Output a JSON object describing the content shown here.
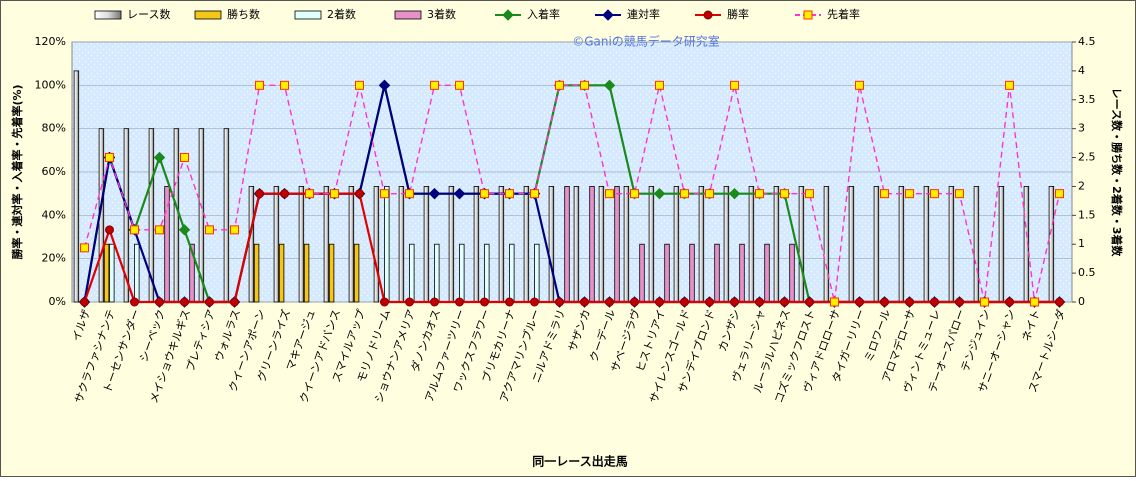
{
  "chart_data": {
    "type": "bar_line",
    "watermark": "©Ganiの競馬データ研究室",
    "x_label": "同一レース出走馬",
    "y_label": "勝率・連対率・入着率・先着率(%)",
    "y2_label": "レース数・勝ち数・2着数・3着数",
    "categories": [
      "イルザ",
      "サクラファシナンテ",
      "トーセンサンダー",
      "シーベック",
      "メイショウキルギス",
      "プレティシア",
      "ウォルラス",
      "クイーンアポーン",
      "グリーンライズ",
      "マキアージュ",
      "クイーンアドバンス",
      "スマイルアップ",
      "モリノドリーム",
      "ショウナンアメリア",
      "ダノンカオス",
      "アルムファーツリー",
      "ワックスフラワー",
      "ブリモカリーナ",
      "アクアマリンブルー",
      "ニルアドミラリ",
      "サザンカ",
      "クーデール",
      "サベージラヴ",
      "ヒストリアイ",
      "サイレンスゴールド",
      "サンデイブロンド",
      "カンザシ",
      "ヴェラリーシャ",
      "ルーラルハピネス",
      "コズミックフロスト",
      "ヴィアドロローサ",
      "タイガーリリー",
      "ミロワール",
      "アロマデローサ",
      "ヴィントミューレ",
      "テーオースパロー",
      "テンジュイン",
      "サニーオーシャン",
      "ネイト",
      "スマートルシーダ"
    ],
    "series": [
      {
        "name": "レース数",
        "type": "bar",
        "axis": "y2",
        "color": "#e8e8e8",
        "values": [
          4,
          3,
          3,
          3,
          3,
          3,
          3,
          2,
          2,
          2,
          2,
          2,
          2,
          2,
          2,
          2,
          2,
          2,
          2,
          2,
          2,
          2,
          2,
          2,
          2,
          2,
          2,
          2,
          2,
          2,
          2,
          2,
          2,
          2,
          2,
          2,
          2,
          2,
          2,
          2
        ]
      },
      {
        "name": "勝ち数",
        "type": "bar",
        "axis": "y2",
        "color": "#f5c518",
        "values": [
          0,
          1,
          0,
          0,
          0,
          0,
          0,
          1,
          1,
          1,
          1,
          1,
          0,
          0,
          0,
          0,
          0,
          0,
          0,
          0,
          0,
          0,
          0,
          0,
          0,
          0,
          0,
          0,
          0,
          0,
          0,
          0,
          0,
          0,
          0,
          0,
          0,
          0,
          0,
          0
        ]
      },
      {
        "name": "2着数",
        "type": "bar",
        "axis": "y2",
        "color": "#e0ffff",
        "values": [
          0,
          1,
          1,
          0,
          0,
          0,
          0,
          0,
          0,
          0,
          0,
          0,
          2,
          1,
          1,
          1,
          1,
          1,
          1,
          0,
          0,
          0,
          0,
          0,
          0,
          0,
          0,
          0,
          0,
          0,
          0,
          0,
          0,
          0,
          0,
          0,
          0,
          0,
          0,
          0
        ]
      },
      {
        "name": "3着数",
        "type": "bar",
        "axis": "y2",
        "color": "#e890c8",
        "values": [
          0,
          0,
          0,
          2,
          1,
          0,
          0,
          0,
          0,
          0,
          0,
          0,
          0,
          0,
          0,
          0,
          0,
          0,
          0,
          2,
          2,
          2,
          1,
          1,
          1,
          1,
          1,
          1,
          1,
          0,
          0,
          0,
          0,
          0,
          0,
          0,
          0,
          0,
          0,
          0
        ]
      },
      {
        "name": "入着率",
        "type": "line",
        "marker": "diamond",
        "color": "#1a8a1a",
        "values": [
          0,
          66.7,
          33.3,
          66.7,
          33.3,
          0,
          0,
          50,
          50,
          50,
          50,
          50,
          100,
          50,
          50,
          50,
          50,
          50,
          50,
          100,
          100,
          100,
          50,
          50,
          50,
          50,
          50,
          50,
          50,
          0,
          0,
          0,
          0,
          0,
          0,
          0,
          0,
          0,
          0,
          0
        ]
      },
      {
        "name": "連対率",
        "type": "line",
        "marker": "diamond",
        "color": "#000080",
        "values": [
          0,
          66.7,
          33.3,
          0,
          0,
          0,
          0,
          50,
          50,
          50,
          50,
          50,
          100,
          50,
          50,
          50,
          50,
          50,
          50,
          0,
          0,
          0,
          0,
          0,
          0,
          0,
          0,
          0,
          0,
          0,
          0,
          0,
          0,
          0,
          0,
          0,
          0,
          0,
          0,
          0
        ]
      },
      {
        "name": "勝率",
        "type": "line",
        "marker": "circle",
        "color": "#e00000",
        "values": [
          0,
          33.3,
          0,
          0,
          0,
          0,
          0,
          50,
          50,
          50,
          50,
          50,
          0,
          0,
          0,
          0,
          0,
          0,
          0,
          0,
          0,
          0,
          0,
          0,
          0,
          0,
          0,
          0,
          0,
          0,
          0,
          0,
          0,
          0,
          0,
          0,
          0,
          0,
          0,
          0
        ]
      },
      {
        "name": "先着率",
        "type": "line",
        "marker": "square",
        "dash": true,
        "color": "#ff33cc",
        "values": [
          25,
          66.7,
          33.3,
          33.3,
          66.7,
          33.3,
          33.3,
          100,
          100,
          50,
          50,
          100,
          50,
          50,
          100,
          100,
          50,
          50,
          50,
          100,
          100,
          50,
          50,
          100,
          50,
          50,
          100,
          50,
          50,
          50,
          0,
          100,
          50,
          50,
          50,
          50,
          0,
          100,
          0,
          50
        ]
      }
    ],
    "ylim": [
      0,
      120
    ],
    "yticks": [
      {
        "value": 0,
        "label": "0%"
      },
      {
        "value": 20,
        "label": "20%"
      },
      {
        "value": 40,
        "label": "40%"
      },
      {
        "value": 60,
        "label": "60%"
      },
      {
        "value": 80,
        "label": "80%"
      },
      {
        "value": 100,
        "label": "100%"
      },
      {
        "value": 120,
        "label": "120%"
      }
    ],
    "y2lim": [
      0,
      4.5
    ],
    "y2ticks": [
      0,
      0.5,
      1,
      1.5,
      2,
      2.5,
      3,
      3.5,
      4,
      4.5
    ],
    "grid": true
  }
}
